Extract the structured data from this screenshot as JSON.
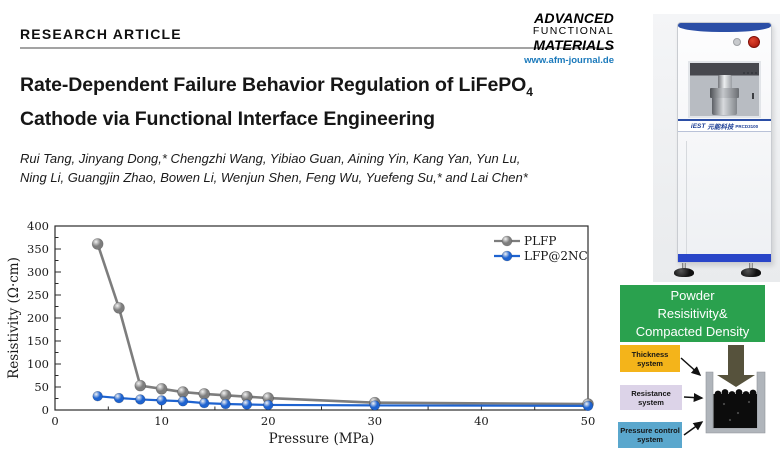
{
  "header": {
    "kicker": "RESEARCH ARTICLE",
    "logo": {
      "line1": "ADVANCED",
      "line2": "FUNCTIONAL",
      "line3": "MATERIALS",
      "url": "www.afm-journal.de",
      "url_color": "#1a79bb"
    }
  },
  "article": {
    "title_main": "Rate-Dependent Failure Behavior Regulation of LiFePO",
    "title_subscript": "4",
    "title_line2": "Cathode via Functional Interface Engineering",
    "authors_line1": "Rui Tang, Jinyang Dong,* Chengzhi Wang, Yibiao Guan, Aining Yin, Kang Yan, Yun Lu,",
    "authors_line2": "Ning Li, Guangjin Zhao, Bowen Li, Wenjun Shen, Feng Wu, Yuefeng Su,* and Lai Chen*"
  },
  "chart_data": {
    "type": "line",
    "title": "",
    "xlabel": "Pressure (MPa)",
    "ylabel": "Resistivity (Ω·cm)",
    "xlim": [
      0,
      50
    ],
    "ylim": [
      0,
      400
    ],
    "x_ticks": [
      0,
      10,
      20,
      30,
      40,
      50
    ],
    "y_ticks": [
      0,
      50,
      100,
      150,
      200,
      250,
      300,
      350,
      400
    ],
    "grid": false,
    "legend_position": "top-right",
    "x": [
      4,
      6,
      8,
      10,
      12,
      14,
      16,
      18,
      20,
      30,
      50
    ],
    "series": [
      {
        "name": "PLFP",
        "color": "#7d7d7d",
        "values": [
          361,
          222,
          53,
          46,
          39,
          35,
          32,
          29,
          26,
          16,
          13
        ]
      },
      {
        "name": "LFP@2NC",
        "color": "#1e63d0",
        "values": [
          30,
          26,
          23,
          21,
          19,
          15,
          13,
          12,
          11,
          10,
          9
        ]
      }
    ]
  },
  "instrument": {
    "brand": "iEST",
    "brand_cn": "元能科技",
    "model": "PRCD3100"
  },
  "diagram": {
    "title_lines": [
      "Powder",
      "Resisitivity&",
      "Compacted Density"
    ],
    "title_bg": "#2aa14e",
    "systems": [
      {
        "label": "Thickness system",
        "color": "#f4b41a"
      },
      {
        "label": "Resistance system",
        "color": "#dcd3e8"
      },
      {
        "label": "Pressure control system",
        "color": "#5aa7cd"
      }
    ]
  }
}
